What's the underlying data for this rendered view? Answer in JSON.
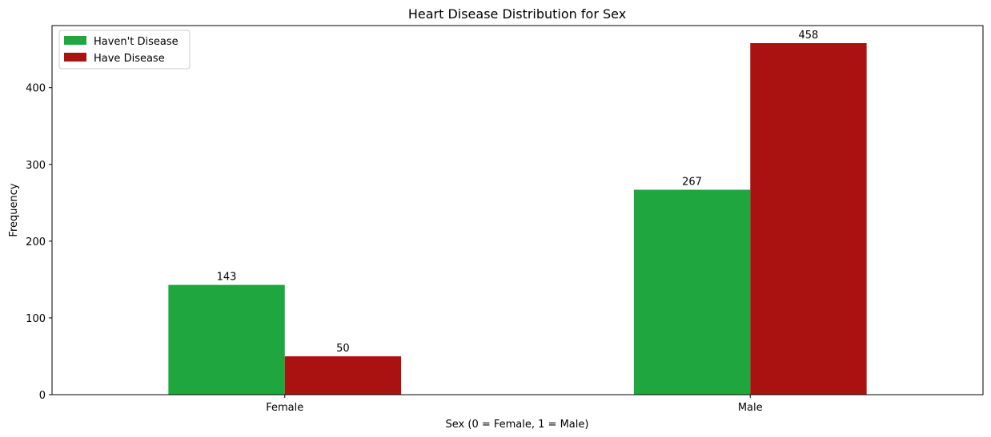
{
  "chart_data": {
    "type": "bar",
    "title": "Heart Disease Distribution for Sex",
    "xlabel": "Sex (0 = Female, 1 = Male)",
    "ylabel": "Frequency",
    "categories": [
      "Female",
      "Male"
    ],
    "series": [
      {
        "name": "Haven't Disease",
        "values": [
          143,
          267
        ],
        "color": "#1fa63e"
      },
      {
        "name": "Have Disease",
        "values": [
          50,
          458
        ],
        "color": "#aa1212"
      }
    ],
    "ylim": [
      0,
      480.9
    ],
    "yticks": [
      0,
      100,
      200,
      300,
      400
    ],
    "grid": false,
    "legend": "top-left"
  }
}
